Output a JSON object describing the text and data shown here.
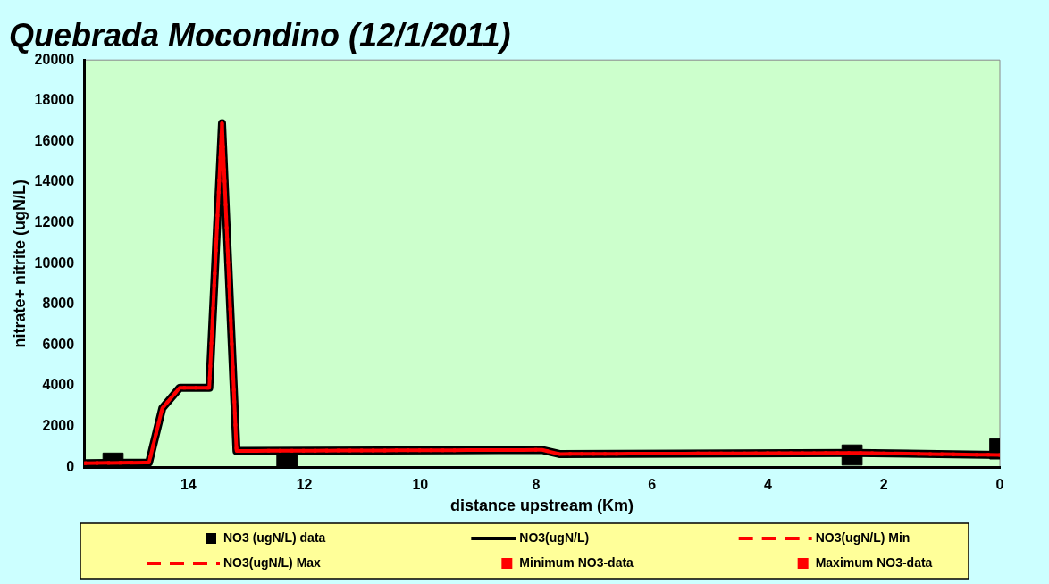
{
  "chart_data": {
    "type": "line",
    "title": "Quebrada Mocondino (12/1/2011)",
    "xlabel": "distance upstream (Km)",
    "ylabel": "nitrate+ nitrite (ugN/L)",
    "xlim": [
      15.8,
      0
    ],
    "xticks": [
      14,
      12,
      10,
      8,
      6,
      4,
      2,
      0
    ],
    "ylim": [
      0,
      20000
    ],
    "yticks": [
      0,
      2000,
      4000,
      6000,
      8000,
      10000,
      12000,
      14000,
      16000,
      18000,
      20000
    ],
    "grid": false,
    "legend": "bottom",
    "series": [
      {
        "name": "NO3 (ugN/L) data",
        "type": "scatter",
        "marker": "square",
        "color": "#000000",
        "x": [
          15.3,
          12.3,
          2.55,
          0
        ],
        "values": [
          200,
          200,
          600,
          900
        ]
      },
      {
        "name": "NO3(ugN/L)",
        "type": "line",
        "line_style": "solid",
        "color": "#000000",
        "x": [
          15.8,
          14.68,
          14.45,
          14.15,
          13.64,
          13.42,
          13.17,
          7.9,
          7.6,
          2.5,
          0
        ],
        "values": [
          200,
          230,
          2900,
          3900,
          3900,
          16900,
          800,
          850,
          650,
          700,
          600
        ]
      },
      {
        "name": "NO3(ugN/L) Min",
        "type": "line",
        "line_style": "dashed",
        "color": "#ff0000",
        "x": [
          15.8,
          14.68,
          14.45,
          14.15,
          13.64,
          13.42,
          13.17,
          7.9,
          7.6,
          2.5,
          0
        ],
        "values": [
          200,
          230,
          2900,
          3900,
          3900,
          16900,
          800,
          850,
          650,
          700,
          600
        ]
      },
      {
        "name": "NO3(ugN/L) Max",
        "type": "line",
        "line_style": "dashed",
        "color": "#ff0000",
        "x": [
          15.8,
          14.68,
          14.45,
          14.15,
          13.64,
          13.42,
          13.17,
          7.9,
          7.6,
          2.5,
          0
        ],
        "values": [
          200,
          230,
          2900,
          3900,
          3900,
          16900,
          800,
          850,
          650,
          700,
          600
        ]
      },
      {
        "name": "Minimum NO3-data",
        "type": "scatter",
        "marker": "square",
        "color": "#ff0000"
      },
      {
        "name": "Maximum NO3-data",
        "type": "scatter",
        "marker": "square",
        "color": "#ff0000"
      }
    ]
  }
}
